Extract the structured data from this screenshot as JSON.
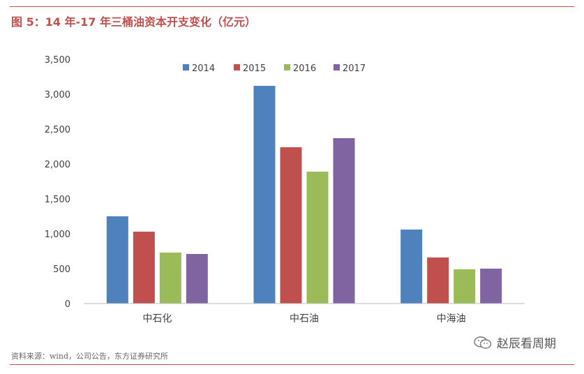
{
  "figure": {
    "title": "图 5：14 年-17 年三桶油资本开支变化（亿元）",
    "source": "资料来源：wind，公司公告，东方证券研究所",
    "watermark": "赵辰看周期",
    "watermark_icon": "wechat-icon",
    "accent_color": "#c0504d"
  },
  "chart_data": {
    "type": "bar",
    "title": "",
    "xlabel": "",
    "ylabel": "",
    "categories": [
      "中石化",
      "中石油",
      "中海油"
    ],
    "series": [
      {
        "name": "2014",
        "color": "#4f81bd",
        "values": [
          1250,
          3120,
          1060
        ]
      },
      {
        "name": "2015",
        "color": "#c0504d",
        "values": [
          1030,
          2240,
          660
        ]
      },
      {
        "name": "2016",
        "color": "#9bbb59",
        "values": [
          730,
          1890,
          490
        ]
      },
      {
        "name": "2017",
        "color": "#8064a2",
        "values": [
          710,
          2370,
          500
        ]
      }
    ],
    "ylim": [
      0,
      3500
    ],
    "yticks": [
      0,
      500,
      1000,
      1500,
      2000,
      2500,
      3000,
      3500
    ],
    "ytick_labels": [
      "0",
      "500",
      "1,000",
      "1,500",
      "2,000",
      "2,500",
      "3,000",
      "3,500"
    ],
    "legend_position": "top-center",
    "grid": false
  }
}
